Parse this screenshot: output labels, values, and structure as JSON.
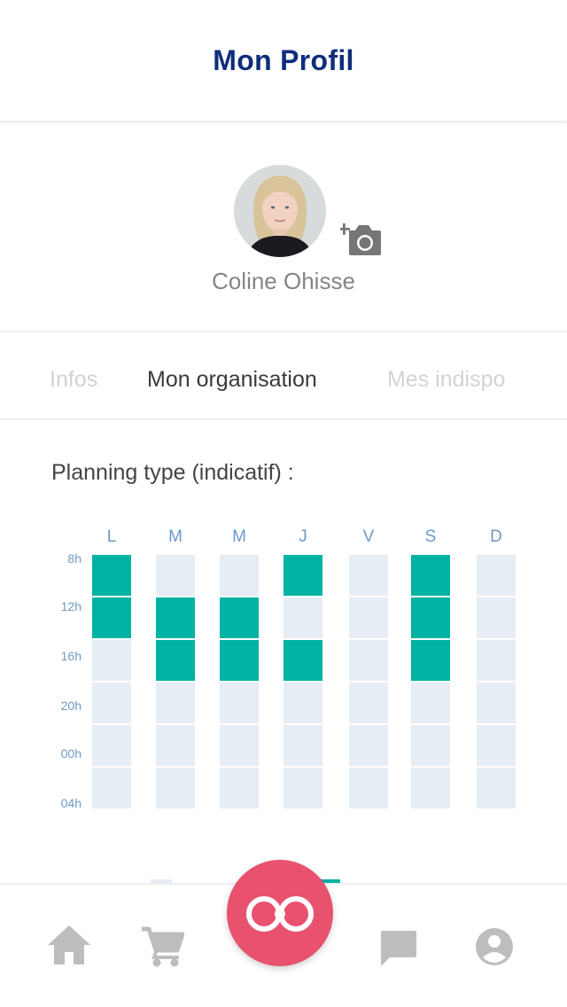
{
  "header": {
    "title": "Mon Profil"
  },
  "profile": {
    "name": "Coline Ohisse"
  },
  "tabs": [
    {
      "label": "Infos",
      "active": false
    },
    {
      "label": "Mon organisation",
      "active": true
    },
    {
      "label": "Mes indispo",
      "active": false
    }
  ],
  "planning": {
    "title": "Planning type (indicatif) :",
    "days": [
      "L",
      "M",
      "M",
      "J",
      "V",
      "S",
      "D"
    ],
    "hours": [
      "8h",
      "12h",
      "16h",
      "20h",
      "00h",
      "04h"
    ],
    "grid": [
      [
        1,
        0,
        0,
        1,
        0,
        1,
        0
      ],
      [
        1,
        1,
        1,
        0,
        0,
        1,
        0
      ],
      [
        0,
        1,
        1,
        1,
        0,
        1,
        0
      ],
      [
        0,
        0,
        0,
        0,
        0,
        0,
        0
      ],
      [
        0,
        0,
        0,
        0,
        0,
        0,
        0
      ],
      [
        0,
        0,
        0,
        0,
        0,
        0,
        0
      ]
    ]
  },
  "colors": {
    "accent": "#00b3a2",
    "title": "#0f2d7a",
    "fab": "#e8526f",
    "empty_cell": "#e6edf4"
  },
  "nav": {
    "items": [
      {
        "icon": "home-icon"
      },
      {
        "icon": "cart-icon"
      },
      {
        "icon": "infinity-logo-icon"
      },
      {
        "icon": "chat-icon"
      },
      {
        "icon": "account-icon"
      }
    ]
  }
}
